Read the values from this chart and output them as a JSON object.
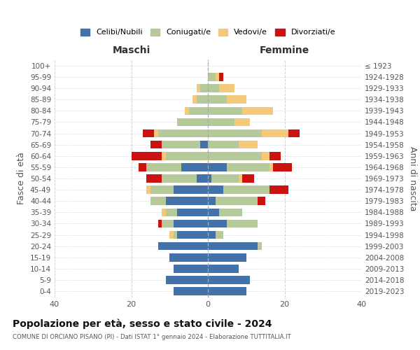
{
  "age_groups": [
    "0-4",
    "5-9",
    "10-14",
    "15-19",
    "20-24",
    "25-29",
    "30-34",
    "35-39",
    "40-44",
    "45-49",
    "50-54",
    "55-59",
    "60-64",
    "65-69",
    "70-74",
    "75-79",
    "80-84",
    "85-89",
    "90-94",
    "95-99",
    "100+"
  ],
  "birth_years": [
    "2019-2023",
    "2014-2018",
    "2009-2013",
    "2004-2008",
    "1999-2003",
    "1994-1998",
    "1989-1993",
    "1984-1988",
    "1979-1983",
    "1974-1978",
    "1969-1973",
    "1964-1968",
    "1959-1963",
    "1954-1958",
    "1949-1953",
    "1944-1948",
    "1939-1943",
    "1934-1938",
    "1929-1933",
    "1924-1928",
    "≤ 1923"
  ],
  "males": {
    "celibi": [
      9,
      11,
      9,
      10,
      13,
      8,
      9,
      8,
      11,
      9,
      3,
      7,
      0,
      2,
      0,
      0,
      0,
      0,
      0,
      0,
      0
    ],
    "coniugati": [
      0,
      0,
      0,
      0,
      0,
      1,
      3,
      3,
      4,
      6,
      9,
      9,
      11,
      10,
      13,
      8,
      5,
      3,
      2,
      0,
      0
    ],
    "vedovi": [
      0,
      0,
      0,
      0,
      0,
      1,
      0,
      1,
      0,
      1,
      0,
      0,
      1,
      0,
      1,
      0,
      1,
      1,
      1,
      0,
      0
    ],
    "divorziati": [
      0,
      0,
      0,
      0,
      0,
      0,
      1,
      0,
      0,
      0,
      4,
      2,
      8,
      3,
      3,
      0,
      0,
      0,
      0,
      0,
      0
    ]
  },
  "females": {
    "nubili": [
      10,
      11,
      8,
      10,
      13,
      2,
      5,
      3,
      2,
      4,
      1,
      5,
      0,
      0,
      0,
      0,
      0,
      0,
      0,
      0,
      0
    ],
    "coniugate": [
      0,
      0,
      0,
      0,
      1,
      2,
      8,
      6,
      11,
      12,
      7,
      11,
      14,
      8,
      14,
      7,
      9,
      5,
      3,
      2,
      0
    ],
    "vedove": [
      0,
      0,
      0,
      0,
      0,
      0,
      0,
      0,
      0,
      0,
      1,
      1,
      2,
      5,
      7,
      4,
      8,
      5,
      4,
      1,
      0
    ],
    "divorziate": [
      0,
      0,
      0,
      0,
      0,
      0,
      0,
      0,
      2,
      5,
      3,
      5,
      3,
      0,
      3,
      0,
      0,
      0,
      0,
      1,
      0
    ]
  },
  "colors": {
    "celibi": "#4472a8",
    "coniugati": "#b5c99a",
    "vedovi": "#f4c97a",
    "divorziati": "#cc1111"
  },
  "title": "Popolazione per età, sesso e stato civile - 2024",
  "subtitle": "COMUNE DI ORCIANO PISANO (PI) - Dati ISTAT 1° gennaio 2024 - Elaborazione TUTTITALIA.IT",
  "xlabel_left": "Maschi",
  "xlabel_right": "Femmine",
  "ylabel_left": "Fasce di età",
  "ylabel_right": "Anni di nascita",
  "xlim": 40,
  "bg_color": "#ffffff",
  "grid_color": "#cccccc",
  "legend_labels": [
    "Celibi/Nubili",
    "Coniugati/e",
    "Vedovi/e",
    "Divorziati/e"
  ]
}
